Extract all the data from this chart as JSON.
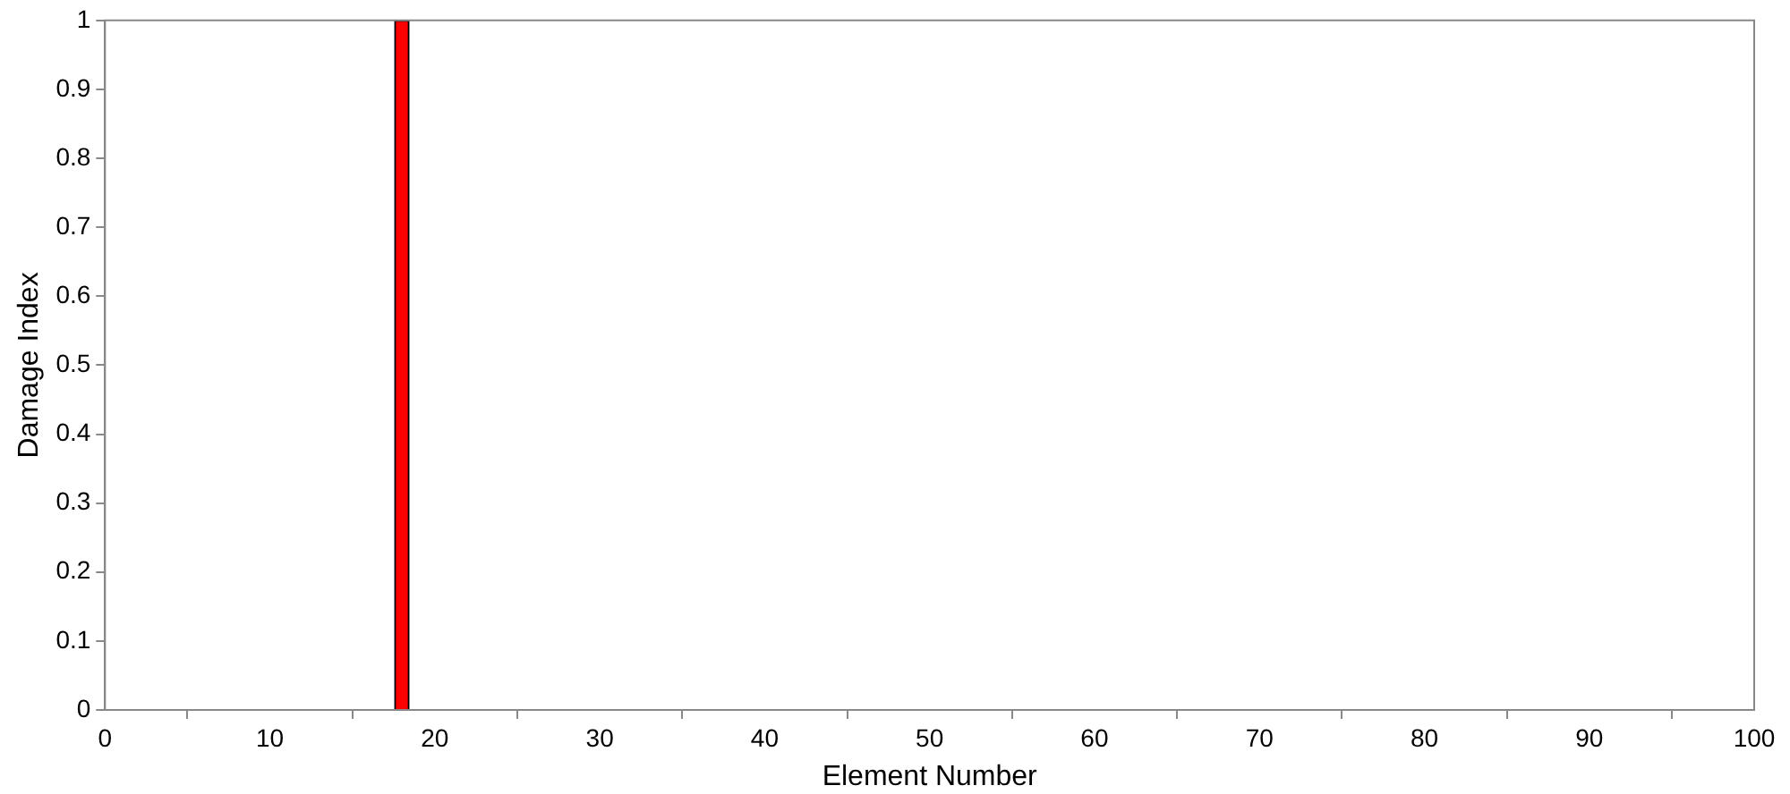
{
  "chart_data": {
    "type": "bar",
    "xlabel": "Element Number",
    "ylabel": "Damage Index",
    "x": [
      18
    ],
    "values": [
      1
    ],
    "color": "#ff0000",
    "xlim": [
      0,
      100
    ],
    "xticks": [
      0,
      10,
      20,
      30,
      40,
      50,
      60,
      70,
      80,
      90,
      100
    ],
    "ylim": [
      0,
      1
    ],
    "yticks": [
      0,
      0.1,
      0.2,
      0.3,
      0.4,
      0.5,
      0.6,
      0.7,
      0.8,
      0.9,
      1
    ],
    "grid": false,
    "legend": false
  }
}
